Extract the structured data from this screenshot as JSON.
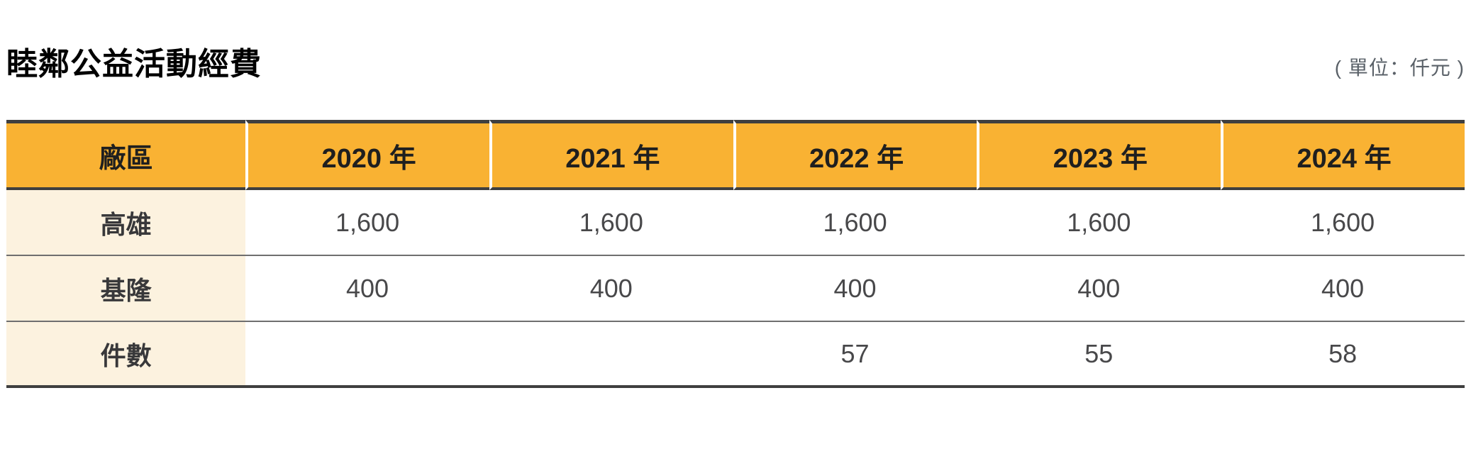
{
  "title": "睦鄰公益活動經費",
  "unit_label": "( 單位：仟元 )",
  "colors": {
    "header_bg": "#F9B233",
    "label_column_bg": "#FCF2DF",
    "dark_border": "#3F3F3F",
    "row_divider": "#6F6F6F",
    "unit_text": "#5A6168"
  },
  "table": {
    "columns": [
      "廠區",
      "2020 年",
      "2021 年",
      "2022 年",
      "2023 年",
      "2024 年"
    ],
    "rows": [
      {
        "label": "高雄",
        "values": [
          "1,600",
          "1,600",
          "1,600",
          "1,600",
          "1,600"
        ]
      },
      {
        "label": "基隆",
        "values": [
          "400",
          "400",
          "400",
          "400",
          "400"
        ]
      },
      {
        "label": "件數",
        "values": [
          "",
          "",
          "57",
          "55",
          "58"
        ]
      }
    ]
  }
}
